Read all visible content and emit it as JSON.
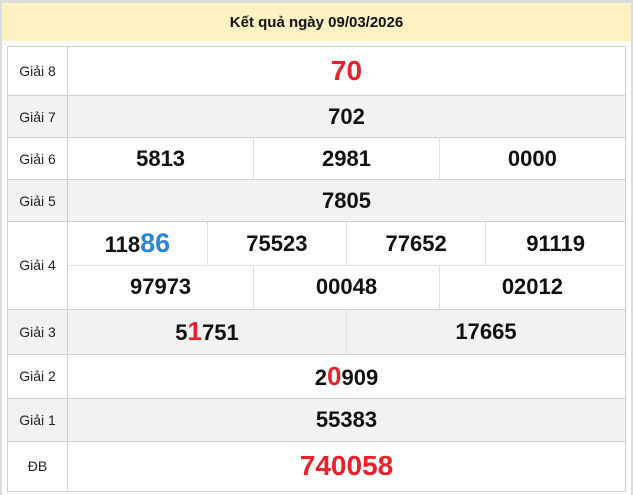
{
  "title": "Kết quả ngày 09/03/2026",
  "colors": {
    "header_bg": "#fff2c2",
    "red": "#e8212a",
    "blue": "#2a86db"
  },
  "rows": {
    "g8": {
      "label": "Giải 8",
      "nums": [
        {
          "pre": "",
          "hl": "70",
          "post": ""
        }
      ]
    },
    "g7": {
      "label": "Giải 7",
      "nums": [
        {
          "pre": "702"
        }
      ]
    },
    "g6": {
      "label": "Giải 6",
      "nums": [
        {
          "pre": "5813"
        },
        {
          "pre": "2981"
        },
        {
          "pre": "0000"
        }
      ]
    },
    "g5": {
      "label": "Giải 5",
      "nums": [
        {
          "pre": "7805"
        }
      ]
    },
    "g4": {
      "label": "Giải 4",
      "nums": [
        {
          "pre": "118",
          "hl": "86"
        },
        {
          "pre": "75523"
        },
        {
          "pre": "77652"
        },
        {
          "pre": "91119"
        },
        {
          "pre": "97973"
        },
        {
          "pre": "00048"
        },
        {
          "pre": "02012"
        }
      ]
    },
    "g3": {
      "label": "Giải 3",
      "nums": [
        {
          "pre": "5",
          "hl": "1",
          "post": "751"
        },
        {
          "pre": "17665"
        }
      ]
    },
    "g2": {
      "label": "Giải 2",
      "nums": [
        {
          "pre": "2",
          "hl": "0",
          "post": "909"
        }
      ]
    },
    "g1": {
      "label": "Giải 1",
      "nums": [
        {
          "pre": "55383"
        }
      ]
    },
    "db": {
      "label": "ĐB",
      "nums": [
        {
          "pre": "",
          "hl": "740058",
          "post": ""
        }
      ]
    }
  }
}
